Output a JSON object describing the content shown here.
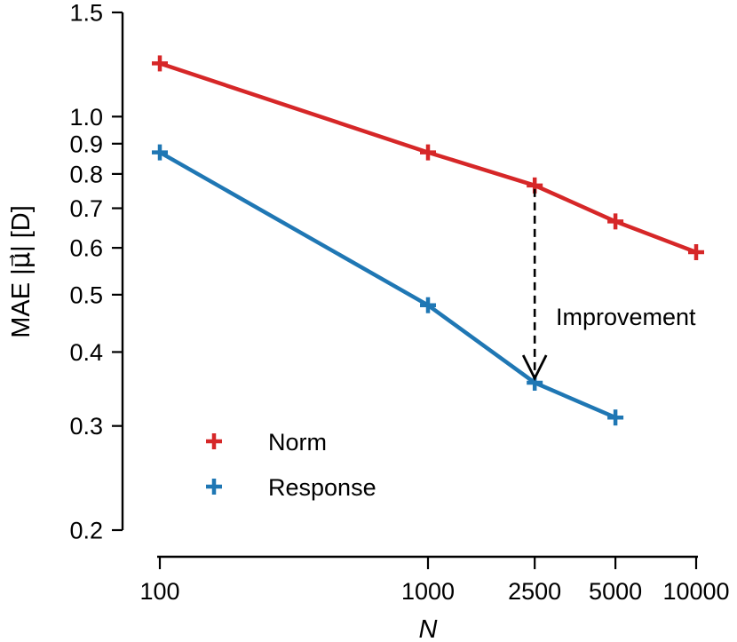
{
  "chart_data": {
    "type": "line",
    "x_scale": "log",
    "y_scale": "log",
    "xlabel": "N",
    "ylabel": "MAE |μ⃗| [D]",
    "xlim": [
      100,
      10000
    ],
    "ylim": [
      0.2,
      1.5
    ],
    "x_ticks": [
      100,
      1000,
      2500,
      5000,
      10000
    ],
    "x_tick_labels": [
      "100",
      "1000",
      "2500",
      "5000",
      "10000"
    ],
    "y_ticks": [
      0.2,
      0.3,
      0.4,
      0.5,
      0.6,
      0.7,
      0.8,
      0.9,
      1.0,
      1.5
    ],
    "y_tick_labels": [
      "0.2",
      "0.3",
      "0.4",
      "0.5",
      "0.6",
      "0.7",
      "0.8",
      "0.9",
      "1.0",
      "1.5"
    ],
    "series": [
      {
        "name": "Norm",
        "color": "#d62728",
        "x": [
          100,
          1000,
          2500,
          5000,
          10000
        ],
        "y": [
          1.23,
          0.87,
          0.765,
          0.665,
          0.59
        ]
      },
      {
        "name": "Response",
        "color": "#1f77b4",
        "x": [
          100,
          1000,
          2500,
          5000
        ],
        "y": [
          0.87,
          0.48,
          0.355,
          0.31
        ]
      }
    ],
    "annotations": [
      {
        "text": "Improvement",
        "from": {
          "x": 2500,
          "y": 0.765
        },
        "to": {
          "x": 2500,
          "y": 0.355
        }
      }
    ],
    "legend_position": "lower-left"
  }
}
